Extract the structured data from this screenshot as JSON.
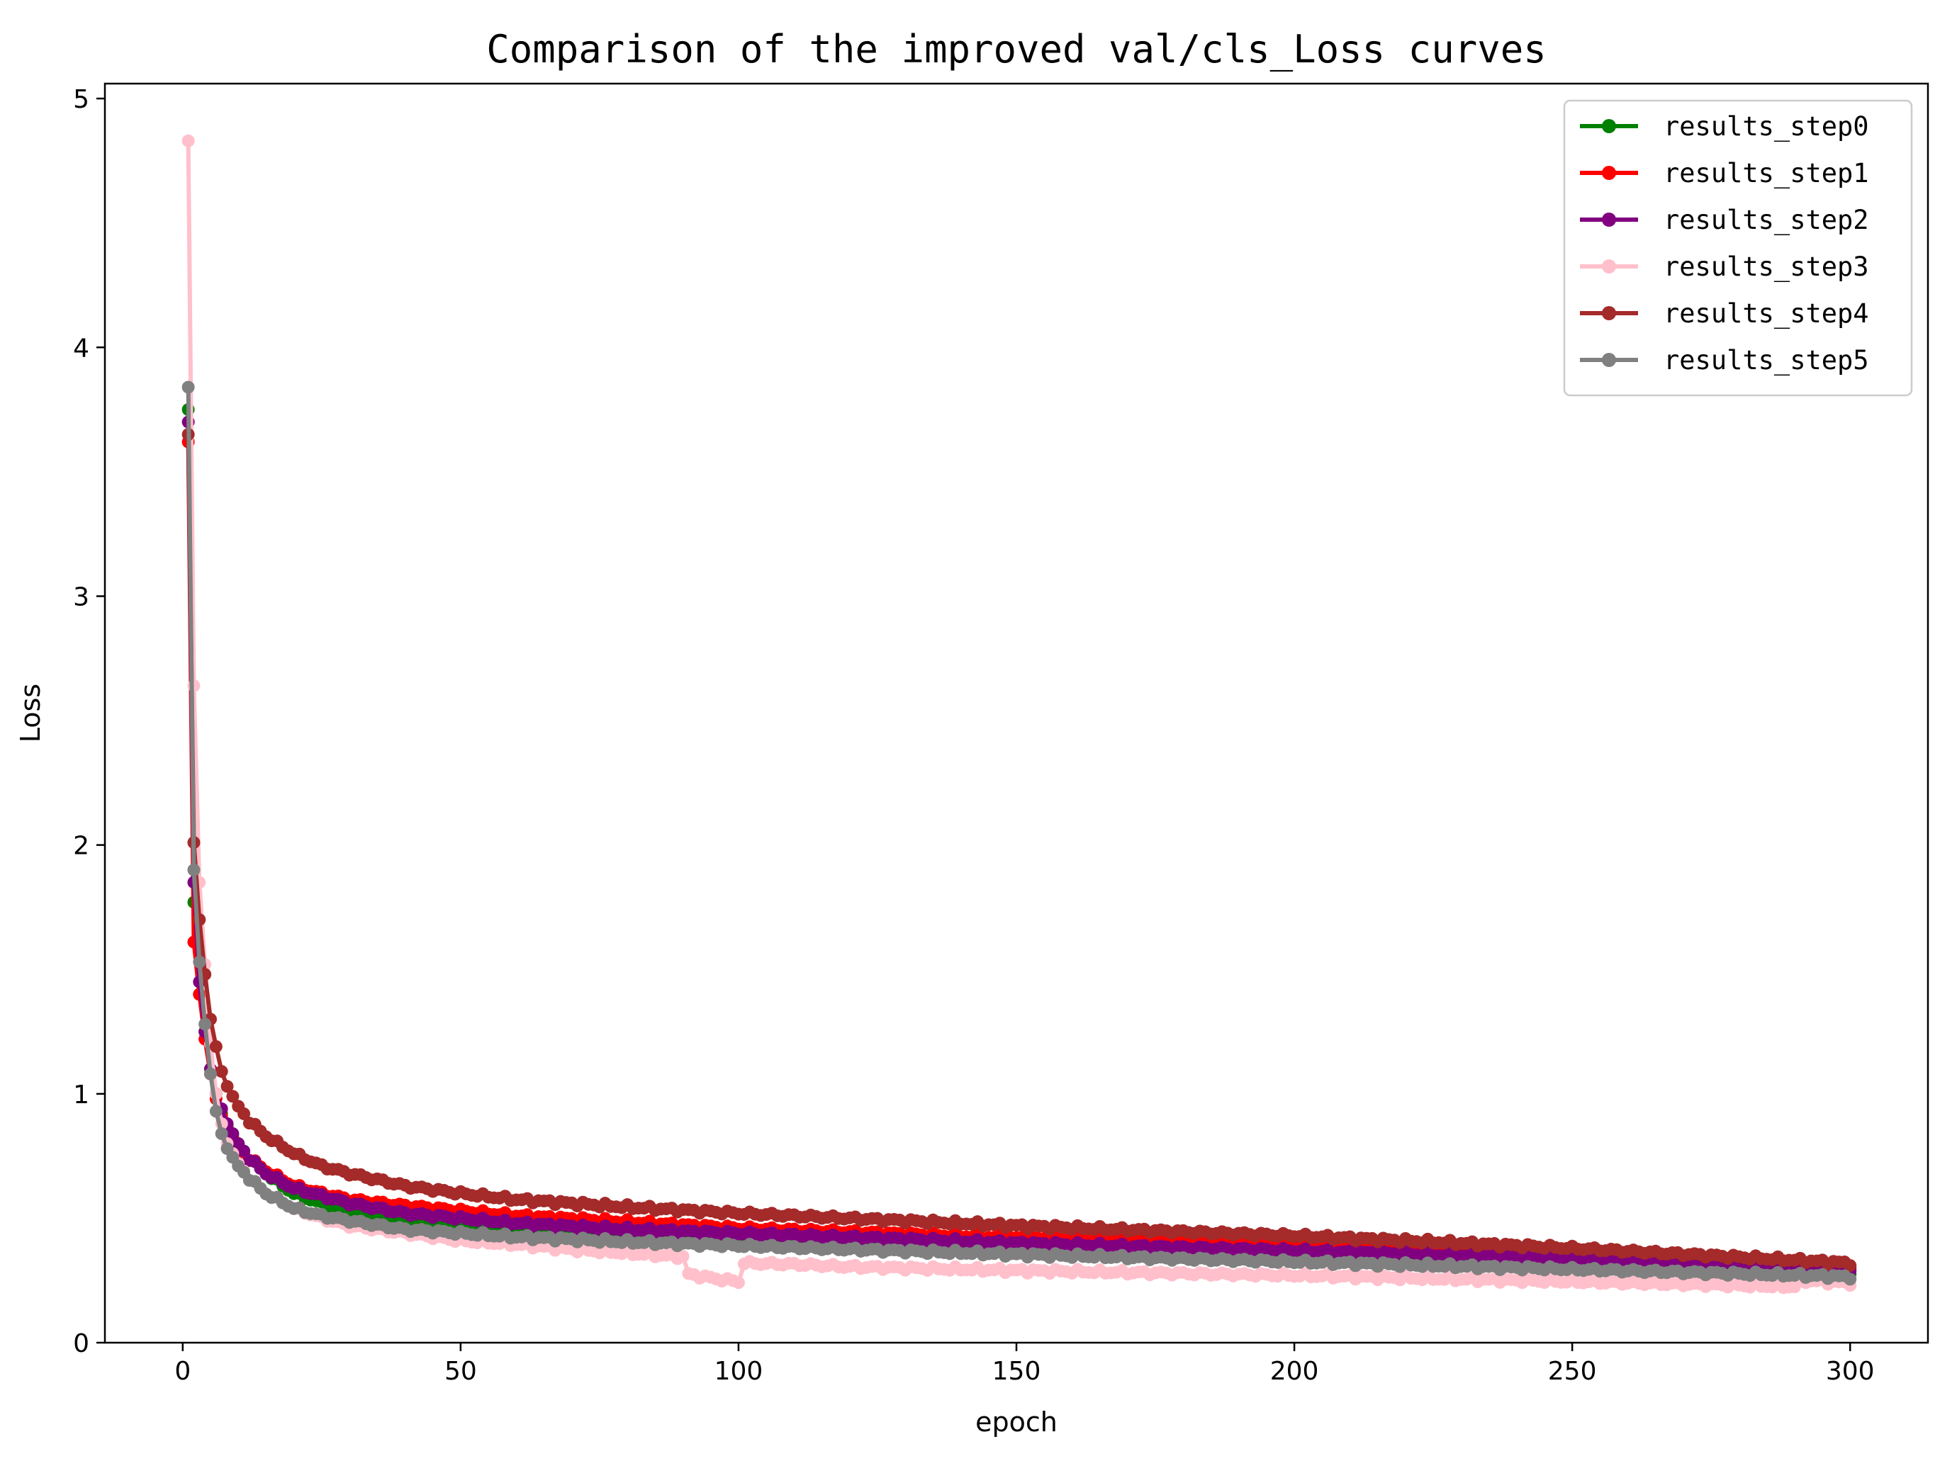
{
  "chart_data": {
    "type": "line",
    "title": "Comparison of the improved val/cls_Loss curves",
    "xlabel": "epoch",
    "ylabel": "Loss",
    "xlim": [
      -14,
      314
    ],
    "ylim": [
      0,
      5.06
    ],
    "xticks": [
      0,
      50,
      100,
      150,
      200,
      250,
      300
    ],
    "yticks": [
      0,
      1,
      2,
      3,
      4,
      5
    ],
    "grid": false,
    "legend_position": "top-right",
    "markers": "circle",
    "x_start": 1,
    "x_end": 300,
    "series": [
      {
        "name": "results_step0",
        "color": "#008000",
        "points": [
          [
            1,
            3.75
          ],
          [
            2,
            1.77
          ],
          [
            3,
            1.4
          ],
          [
            4,
            1.25
          ],
          [
            5,
            1.1
          ],
          [
            6,
            1.0
          ],
          [
            7,
            0.92
          ],
          [
            8,
            0.87
          ],
          [
            10,
            0.8
          ],
          [
            12,
            0.74
          ],
          [
            15,
            0.68
          ],
          [
            20,
            0.6
          ],
          [
            25,
            0.56
          ],
          [
            30,
            0.53
          ],
          [
            40,
            0.5
          ],
          [
            50,
            0.475
          ],
          [
            60,
            0.46
          ],
          [
            80,
            0.435
          ],
          [
            100,
            0.42
          ],
          [
            120,
            0.41
          ],
          [
            150,
            0.385
          ],
          [
            200,
            0.355
          ],
          [
            250,
            0.32
          ],
          [
            300,
            0.285
          ]
        ]
      },
      {
        "name": "results_step1",
        "color": "#ff0000",
        "points": [
          [
            1,
            3.62
          ],
          [
            2,
            1.61
          ],
          [
            3,
            1.4
          ],
          [
            4,
            1.22
          ],
          [
            5,
            1.08
          ],
          [
            6,
            0.98
          ],
          [
            7,
            0.91
          ],
          [
            8,
            0.86
          ],
          [
            10,
            0.79
          ],
          [
            12,
            0.74
          ],
          [
            15,
            0.69
          ],
          [
            20,
            0.63
          ],
          [
            25,
            0.6
          ],
          [
            30,
            0.575
          ],
          [
            40,
            0.55
          ],
          [
            50,
            0.53
          ],
          [
            60,
            0.51
          ],
          [
            80,
            0.485
          ],
          [
            100,
            0.46
          ],
          [
            120,
            0.445
          ],
          [
            150,
            0.42
          ],
          [
            200,
            0.39
          ],
          [
            250,
            0.355
          ],
          [
            300,
            0.31
          ]
        ]
      },
      {
        "name": "results_step2",
        "color": "#800080",
        "points": [
          [
            1,
            3.7
          ],
          [
            2,
            1.85
          ],
          [
            3,
            1.45
          ],
          [
            4,
            1.25
          ],
          [
            5,
            1.1
          ],
          [
            6,
            1.0
          ],
          [
            8,
            0.88
          ],
          [
            10,
            0.8
          ],
          [
            12,
            0.74
          ],
          [
            15,
            0.68
          ],
          [
            20,
            0.62
          ],
          [
            30,
            0.56
          ],
          [
            40,
            0.52
          ],
          [
            50,
            0.5
          ],
          [
            60,
            0.48
          ],
          [
            80,
            0.455
          ],
          [
            100,
            0.44
          ],
          [
            150,
            0.4
          ],
          [
            200,
            0.37
          ],
          [
            250,
            0.335
          ],
          [
            300,
            0.3
          ]
        ]
      },
      {
        "name": "results_step3",
        "color": "#ffc0cb",
        "points": [
          [
            1,
            4.83
          ],
          [
            2,
            2.64
          ],
          [
            3,
            1.85
          ],
          [
            4,
            1.52
          ],
          [
            5,
            1.2
          ],
          [
            6,
            1.0
          ],
          [
            7,
            0.88
          ],
          [
            8,
            0.8
          ],
          [
            10,
            0.72
          ],
          [
            12,
            0.66
          ],
          [
            15,
            0.6
          ],
          [
            20,
            0.54
          ],
          [
            25,
            0.5
          ],
          [
            30,
            0.47
          ],
          [
            40,
            0.44
          ],
          [
            50,
            0.41
          ],
          [
            60,
            0.395
          ],
          [
            70,
            0.375
          ],
          [
            80,
            0.36
          ],
          [
            90,
            0.345
          ],
          [
            91,
            0.275
          ],
          [
            95,
            0.26
          ],
          [
            100,
            0.245
          ],
          [
            101,
            0.32
          ],
          [
            110,
            0.315
          ],
          [
            120,
            0.305
          ],
          [
            150,
            0.29
          ],
          [
            200,
            0.27
          ],
          [
            250,
            0.245
          ],
          [
            290,
            0.225
          ],
          [
            291,
            0.25
          ],
          [
            300,
            0.24
          ]
        ]
      },
      {
        "name": "results_step4",
        "color": "#a52a2a",
        "points": [
          [
            1,
            3.65
          ],
          [
            2,
            2.01
          ],
          [
            3,
            1.7
          ],
          [
            4,
            1.48
          ],
          [
            5,
            1.3
          ],
          [
            6,
            1.19
          ],
          [
            7,
            1.09
          ],
          [
            8,
            1.03
          ],
          [
            10,
            0.95
          ],
          [
            12,
            0.89
          ],
          [
            15,
            0.83
          ],
          [
            20,
            0.76
          ],
          [
            25,
            0.71
          ],
          [
            30,
            0.68
          ],
          [
            40,
            0.63
          ],
          [
            50,
            0.6
          ],
          [
            60,
            0.575
          ],
          [
            80,
            0.545
          ],
          [
            100,
            0.52
          ],
          [
            120,
            0.5
          ],
          [
            150,
            0.47
          ],
          [
            200,
            0.43
          ],
          [
            250,
            0.38
          ],
          [
            300,
            0.32
          ]
        ]
      },
      {
        "name": "results_step5",
        "color": "#808080",
        "points": [
          [
            1,
            3.84
          ],
          [
            2,
            1.9
          ],
          [
            3,
            1.53
          ],
          [
            4,
            1.28
          ],
          [
            5,
            1.08
          ],
          [
            6,
            0.93
          ],
          [
            7,
            0.84
          ],
          [
            8,
            0.78
          ],
          [
            10,
            0.71
          ],
          [
            12,
            0.66
          ],
          [
            15,
            0.6
          ],
          [
            20,
            0.54
          ],
          [
            25,
            0.51
          ],
          [
            30,
            0.49
          ],
          [
            40,
            0.455
          ],
          [
            50,
            0.44
          ],
          [
            60,
            0.425
          ],
          [
            80,
            0.405
          ],
          [
            100,
            0.39
          ],
          [
            120,
            0.375
          ],
          [
            150,
            0.355
          ],
          [
            200,
            0.325
          ],
          [
            250,
            0.295
          ],
          [
            300,
            0.265
          ]
        ]
      }
    ]
  }
}
